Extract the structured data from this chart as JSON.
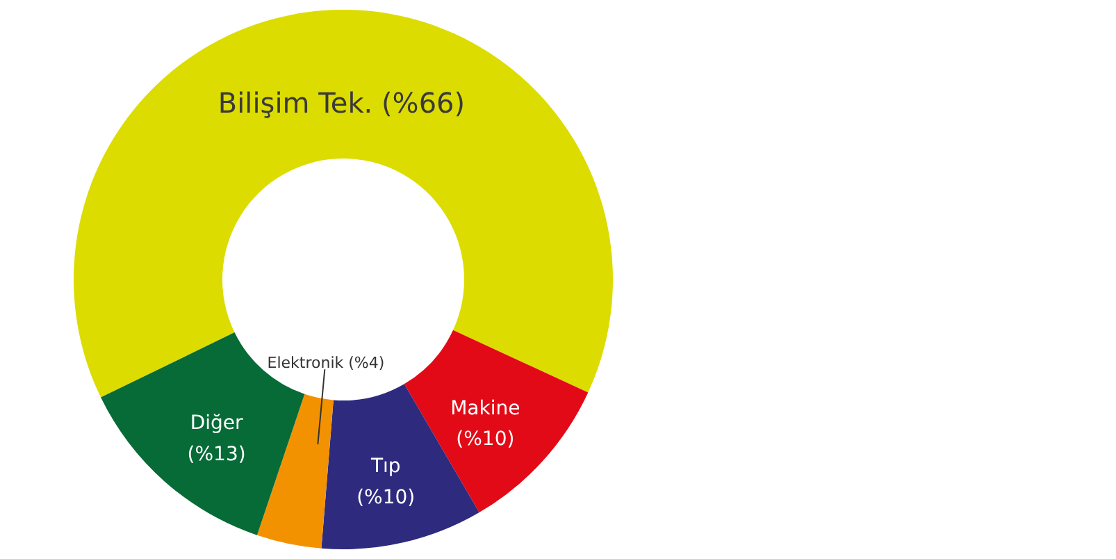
{
  "chart_data": {
    "type": "donut",
    "categories": [
      "Bilişim Tek.",
      "Makine",
      "Tıp",
      "Elektronik",
      "Diğer"
    ],
    "values": [
      66,
      10,
      10,
      4,
      13
    ],
    "value_labels": [
      "(%66)",
      "(%10)",
      "(%10)",
      "(%4)",
      "(%13)"
    ],
    "colors": [
      "#dcdc00",
      "#e30a17",
      "#2e2a7e",
      "#f39200",
      "#066b37"
    ],
    "legend": false
  }
}
